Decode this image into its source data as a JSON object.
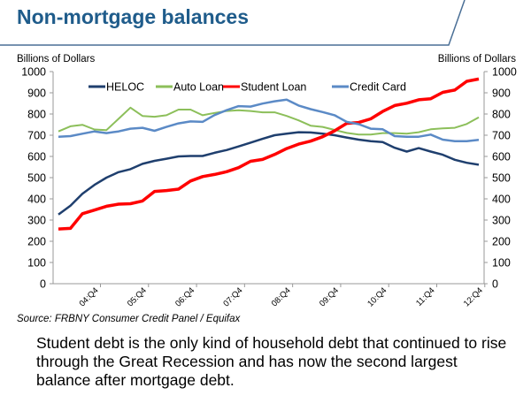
{
  "slide": {
    "title": "Non-mortgage balances",
    "source": "Source: FRBNY Consumer Credit Panel / Equifax",
    "caption": "Student debt is the only kind of household debt that continued to rise through the Great Recession and has now the second largest balance after mortgage debt."
  },
  "chart_data": {
    "type": "line",
    "ylabel_left": "Billions of Dollars",
    "ylabel_right": "Billions of Dollars",
    "ylim": [
      0,
      1000
    ],
    "yticks": [
      0,
      100,
      200,
      300,
      400,
      500,
      600,
      700,
      800,
      900,
      1000
    ],
    "x_period": "quarterly, 04:Q1 to 12:Q4",
    "xtick_labels": [
      "04:Q4",
      "05:Q4",
      "06:Q4",
      "07:Q4",
      "08:Q4",
      "09:Q4",
      "10:Q4",
      "11:Q4",
      "12:Q4"
    ],
    "grid": false,
    "legend_placement": "top",
    "series": [
      {
        "name": "HELOC",
        "color": "#1f3f6e",
        "values": [
          326,
          368,
          424,
          466,
          500,
          526,
          540,
          565,
          579,
          589,
          600,
          602,
          602,
          617,
          630,
          647,
          665,
          683,
          700,
          707,
          714,
          713,
          707,
          700,
          689,
          679,
          672,
          668,
          641,
          623,
          639,
          623,
          608,
          584,
          570,
          561
        ]
      },
      {
        "name": "Auto Loan",
        "color": "#8cbf5a",
        "values": [
          718,
          742,
          749,
          727,
          724,
          777,
          830,
          791,
          787,
          794,
          821,
          821,
          794,
          805,
          814,
          818,
          814,
          808,
          808,
          791,
          770,
          745,
          739,
          725,
          711,
          703,
          703,
          710,
          710,
          707,
          714,
          728,
          732,
          735,
          753,
          784
        ]
      },
      {
        "name": "Student Loan",
        "color": "#ff0000",
        "values": [
          258,
          261,
          330,
          347,
          365,
          375,
          377,
          390,
          435,
          439,
          446,
          484,
          505,
          515,
          528,
          547,
          577,
          586,
          609,
          637,
          658,
          672,
          693,
          721,
          756,
          760,
          777,
          812,
          840,
          851,
          867,
          872,
          902,
          913,
          954,
          965
        ]
      },
      {
        "name": "Credit Card",
        "color": "#5b8ac6",
        "values": [
          693,
          696,
          707,
          718,
          710,
          718,
          731,
          735,
          721,
          739,
          756,
          765,
          763,
          795,
          818,
          837,
          835,
          849,
          860,
          868,
          840,
          823,
          809,
          794,
          763,
          752,
          731,
          728,
          696,
          693,
          693,
          703,
          679,
          672,
          672,
          678
        ]
      }
    ]
  }
}
